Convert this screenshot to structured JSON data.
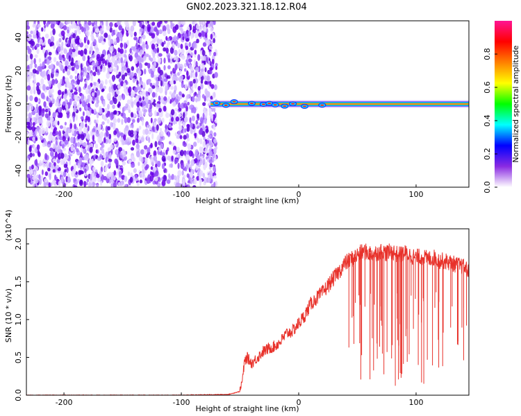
{
  "figure_title": "GN02.2023.321.18.12.R04",
  "chart_data": [
    {
      "type": "heatmap",
      "xlabel": "Height of straight line (km)",
      "ylabel": "Frequency (Hz)",
      "xlim": [
        -232,
        145
      ],
      "ylim": [
        -50,
        50
      ],
      "xticks": [
        -200,
        -100,
        0,
        100
      ],
      "yticks": [
        -40,
        -20,
        0,
        20,
        40
      ],
      "noise_region_x": [
        -232,
        -70
      ],
      "signal_band": {
        "x_start": -75,
        "x_end": 145,
        "freq_center": 0,
        "freq_halfwidth": 3
      },
      "colorbar": {
        "label": "Normalized spectral amplitude",
        "range": [
          0,
          1
        ],
        "ticks": [
          0.0,
          0.2,
          0.4,
          0.6,
          0.8
        ],
        "colormap": [
          "#ffffff",
          "#8a2be2",
          "#0000ff",
          "#00ffff",
          "#00ff00",
          "#ffff00",
          "#ff8000",
          "#ff0000",
          "#ff1493"
        ]
      }
    },
    {
      "type": "line",
      "xlabel": "Height of straight line (km)",
      "ylabel": "SNR (10 * v/v)",
      "y_multiplier": "(x10^4)",
      "xlim": [
        -232,
        145
      ],
      "ylim": [
        0,
        2.2
      ],
      "xticks": [
        -200,
        -100,
        0,
        100
      ],
      "yticks": [
        0.0,
        0.5,
        1.0,
        1.5,
        2.0
      ],
      "color": "#e8312a",
      "series": [
        {
          "x": [
            -232,
            -200,
            -150,
            -100,
            -60,
            -50,
            -48,
            -46,
            -44,
            -40,
            -35,
            -30,
            -25,
            -20,
            -15,
            -10,
            -5,
            0,
            5,
            10,
            15,
            20,
            25,
            30,
            35,
            40,
            45,
            50,
            55,
            60,
            65,
            70,
            75,
            80,
            85,
            90,
            95,
            100,
            105,
            110,
            115,
            120,
            125,
            130,
            135,
            140,
            145
          ],
          "values": [
            0.0,
            0.0,
            0.0,
            0.0,
            0.01,
            0.05,
            0.2,
            0.45,
            0.5,
            0.42,
            0.5,
            0.58,
            0.62,
            0.65,
            0.72,
            0.82,
            0.85,
            0.95,
            1.05,
            1.2,
            1.28,
            1.35,
            1.45,
            1.55,
            1.65,
            1.75,
            1.8,
            1.85,
            1.9,
            1.88,
            1.87,
            1.9,
            1.88,
            1.9,
            1.85,
            1.88,
            1.85,
            1.82,
            1.83,
            1.8,
            1.82,
            1.78,
            1.77,
            1.75,
            1.72,
            1.7,
            1.65
          ]
        }
      ]
    }
  ]
}
